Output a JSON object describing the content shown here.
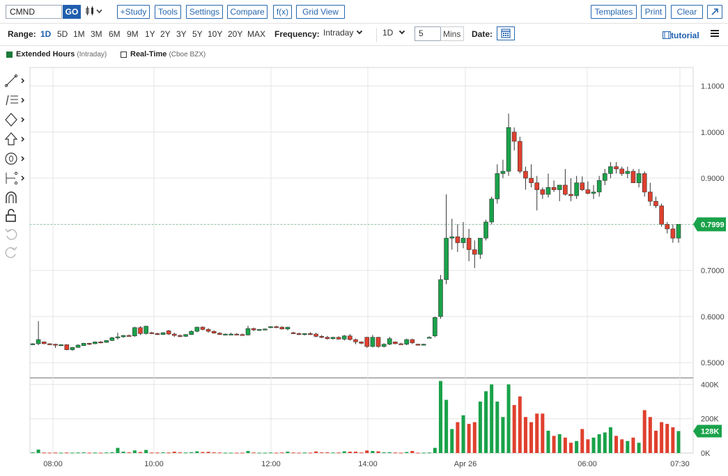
{
  "toolbar": {
    "symbol": "CMND",
    "go_label": "GO",
    "buttons": [
      {
        "name": "study-button",
        "label": "+Study"
      },
      {
        "name": "tools-button",
        "label": "Tools"
      },
      {
        "name": "settings-button",
        "label": "Settings"
      },
      {
        "name": "compare-button",
        "label": "Compare"
      },
      {
        "name": "fx-button",
        "label": "f(x)"
      },
      {
        "name": "grid-view-button",
        "label": "Grid View"
      }
    ],
    "right_buttons": [
      {
        "name": "templates-button",
        "label": "Templates"
      },
      {
        "name": "print-button",
        "label": "Print"
      },
      {
        "name": "clear-button",
        "label": "Clear"
      }
    ]
  },
  "controls": {
    "range_label": "Range:",
    "ranges": [
      "1D",
      "5D",
      "1M",
      "3M",
      "6M",
      "9M",
      "1Y",
      "2Y",
      "3Y",
      "5Y",
      "10Y",
      "20Y",
      "MAX"
    ],
    "active_range": "1D",
    "frequency_label": "Frequency:",
    "frequency_value": "Intraday",
    "interval_value": "1D",
    "minutes_value": "5",
    "minutes_label": "Mins",
    "date_label": "Date:",
    "tutorial_label": "tutorial"
  },
  "legend": {
    "extended_label": "Extended Hours",
    "extended_note": "(Intraday)",
    "realtime_label": "Real-Time",
    "realtime_note": "(Cboe BZX)"
  },
  "colors": {
    "up": "#1aa24a",
    "down": "#e0402e",
    "accent": "#1f5fae",
    "grid": "#e4e4e4"
  },
  "chart_data": {
    "type": "candlestick",
    "price_ticks": [
      "1.1000",
      "1.0000",
      "0.9000",
      "0.8000",
      "0.7000",
      "0.6000",
      "0.5000"
    ],
    "price_range": [
      0.47,
      1.14
    ],
    "volume_ticks": [
      "400K",
      "200K",
      "0K"
    ],
    "volume_range": [
      0,
      430
    ],
    "x_labels": [
      "08:00",
      "10:00",
      "12:00",
      "14:00",
      "Apr 26",
      "06:00",
      "07:30"
    ],
    "last_price": "0.7999",
    "last_volume": "128K",
    "candles": [
      [
        0.54,
        0.542,
        0.538,
        0.541,
        4
      ],
      [
        0.541,
        0.59,
        0.538,
        0.55,
        20
      ],
      [
        0.545,
        0.546,
        0.54,
        0.541,
        3
      ],
      [
        0.541,
        0.542,
        0.538,
        0.54,
        2
      ],
      [
        0.54,
        0.541,
        0.532,
        0.538,
        3
      ],
      [
        0.538,
        0.54,
        0.536,
        0.539,
        2
      ],
      [
        0.539,
        0.54,
        0.527,
        0.528,
        3
      ],
      [
        0.528,
        0.534,
        0.526,
        0.533,
        2
      ],
      [
        0.533,
        0.54,
        0.532,
        0.538,
        3
      ],
      [
        0.537,
        0.543,
        0.536,
        0.542,
        4
      ],
      [
        0.542,
        0.543,
        0.538,
        0.541,
        2
      ],
      [
        0.541,
        0.546,
        0.54,
        0.545,
        3
      ],
      [
        0.545,
        0.547,
        0.542,
        0.544,
        2
      ],
      [
        0.544,
        0.549,
        0.543,
        0.548,
        3
      ],
      [
        0.548,
        0.556,
        0.547,
        0.554,
        5
      ],
      [
        0.554,
        0.565,
        0.55,
        0.556,
        30
      ],
      [
        0.556,
        0.56,
        0.554,
        0.559,
        8
      ],
      [
        0.559,
        0.561,
        0.557,
        0.558,
        4
      ],
      [
        0.558,
        0.578,
        0.556,
        0.576,
        15
      ],
      [
        0.576,
        0.579,
        0.56,
        0.563,
        6
      ],
      [
        0.563,
        0.58,
        0.561,
        0.579,
        18
      ],
      [
        0.565,
        0.567,
        0.562,
        0.563,
        3
      ],
      [
        0.563,
        0.565,
        0.56,
        0.561,
        3
      ],
      [
        0.561,
        0.566,
        0.56,
        0.565,
        4
      ],
      [
        0.569,
        0.571,
        0.56,
        0.562,
        3
      ],
      [
        0.562,
        0.565,
        0.556,
        0.559,
        8
      ],
      [
        0.559,
        0.561,
        0.555,
        0.557,
        4
      ],
      [
        0.557,
        0.562,
        0.556,
        0.561,
        3
      ],
      [
        0.561,
        0.57,
        0.56,
        0.568,
        5
      ],
      [
        0.568,
        0.578,
        0.566,
        0.577,
        10
      ],
      [
        0.577,
        0.579,
        0.57,
        0.572,
        6
      ],
      [
        0.572,
        0.575,
        0.565,
        0.568,
        7
      ],
      [
        0.568,
        0.57,
        0.563,
        0.564,
        4
      ],
      [
        0.564,
        0.566,
        0.56,
        0.561,
        3
      ],
      [
        0.561,
        0.563,
        0.559,
        0.562,
        2
      ],
      [
        0.562,
        0.565,
        0.56,
        0.562,
        2
      ],
      [
        0.562,
        0.564,
        0.56,
        0.561,
        2
      ],
      [
        0.561,
        0.563,
        0.559,
        0.56,
        2
      ],
      [
        0.56,
        0.58,
        0.559,
        0.574,
        12
      ],
      [
        0.574,
        0.576,
        0.568,
        0.571,
        3
      ],
      [
        0.571,
        0.573,
        0.569,
        0.572,
        2
      ],
      [
        0.572,
        0.574,
        0.57,
        0.573,
        2
      ],
      [
        0.577,
        0.579,
        0.575,
        0.578,
        3
      ],
      [
        0.578,
        0.58,
        0.575,
        0.577,
        2
      ],
      [
        0.577,
        0.579,
        0.572,
        0.573,
        3
      ],
      [
        0.573,
        0.578,
        0.57,
        0.577,
        8
      ],
      [
        0.565,
        0.567,
        0.562,
        0.563,
        3
      ],
      [
        0.563,
        0.565,
        0.56,
        0.561,
        2
      ],
      [
        0.561,
        0.564,
        0.559,
        0.563,
        3
      ],
      [
        0.563,
        0.566,
        0.56,
        0.562,
        2
      ],
      [
        0.562,
        0.565,
        0.555,
        0.557,
        9
      ],
      [
        0.557,
        0.56,
        0.553,
        0.555,
        4
      ],
      [
        0.555,
        0.558,
        0.55,
        0.552,
        4
      ],
      [
        0.552,
        0.556,
        0.55,
        0.555,
        3
      ],
      [
        0.555,
        0.557,
        0.55,
        0.551,
        3
      ],
      [
        0.551,
        0.56,
        0.548,
        0.558,
        10
      ],
      [
        0.558,
        0.562,
        0.548,
        0.55,
        8
      ],
      [
        0.55,
        0.552,
        0.54,
        0.545,
        8
      ],
      [
        0.545,
        0.546,
        0.54,
        0.542,
        3
      ],
      [
        0.555,
        0.556,
        0.532,
        0.535,
        15
      ],
      [
        0.535,
        0.56,
        0.533,
        0.555,
        12
      ],
      [
        0.555,
        0.556,
        0.532,
        0.535,
        10
      ],
      [
        0.535,
        0.542,
        0.533,
        0.54,
        4
      ],
      [
        0.54,
        0.556,
        0.538,
        0.552,
        5
      ],
      [
        0.545,
        0.546,
        0.54,
        0.541,
        3
      ],
      [
        0.541,
        0.543,
        0.539,
        0.54,
        2
      ],
      [
        0.54,
        0.552,
        0.538,
        0.55,
        6
      ],
      [
        0.55,
        0.552,
        0.54,
        0.543,
        12
      ],
      [
        0.54,
        0.541,
        0.538,
        0.539,
        2
      ],
      [
        0.539,
        0.541,
        0.538,
        0.54,
        2
      ],
      [
        0.555,
        0.557,
        0.553,
        0.555,
        3
      ],
      [
        0.558,
        0.6,
        0.555,
        0.598,
        30
      ],
      [
        0.6,
        0.69,
        0.595,
        0.68,
        420
      ],
      [
        0.68,
        0.865,
        0.67,
        0.77,
        310
      ],
      [
        0.77,
        0.812,
        0.745,
        0.773,
        140
      ],
      [
        0.773,
        0.8,
        0.74,
        0.76,
        180
      ],
      [
        0.76,
        0.805,
        0.748,
        0.77,
        220
      ],
      [
        0.77,
        0.79,
        0.72,
        0.745,
        170
      ],
      [
        0.745,
        0.765,
        0.705,
        0.735,
        180
      ],
      [
        0.735,
        0.77,
        0.725,
        0.77,
        300
      ],
      [
        0.77,
        0.81,
        0.765,
        0.805,
        360
      ],
      [
        0.805,
        0.86,
        0.8,
        0.855,
        400
      ],
      [
        0.855,
        0.93,
        0.845,
        0.91,
        300
      ],
      [
        0.91,
        0.94,
        0.9,
        0.915,
        210
      ],
      [
        0.915,
        1.04,
        0.905,
        1.01,
        400
      ],
      [
        1.0,
        1.01,
        0.96,
        0.98,
        280
      ],
      [
        0.98,
        0.99,
        0.91,
        0.915,
        330
      ],
      [
        0.915,
        0.925,
        0.875,
        0.9,
        210
      ],
      [
        0.9,
        0.93,
        0.88,
        0.89,
        180
      ],
      [
        0.89,
        0.905,
        0.83,
        0.875,
        230
      ],
      [
        0.875,
        0.88,
        0.855,
        0.865,
        230
      ],
      [
        0.865,
        0.91,
        0.858,
        0.88,
        130
      ],
      [
        0.88,
        0.895,
        0.87,
        0.875,
        100
      ],
      [
        0.875,
        0.885,
        0.85,
        0.885,
        110
      ],
      [
        0.885,
        0.92,
        0.862,
        0.865,
        90
      ],
      [
        0.865,
        0.9,
        0.85,
        0.862,
        60
      ],
      [
        0.862,
        0.905,
        0.855,
        0.89,
        70
      ],
      [
        0.89,
        0.904,
        0.872,
        0.875,
        140
      ],
      [
        0.875,
        0.893,
        0.865,
        0.867,
        80
      ],
      [
        0.867,
        0.885,
        0.855,
        0.87,
        90
      ],
      [
        0.87,
        0.905,
        0.86,
        0.895,
        110
      ],
      [
        0.895,
        0.92,
        0.885,
        0.91,
        120
      ],
      [
        0.91,
        0.935,
        0.9,
        0.925,
        150
      ],
      [
        0.925,
        0.935,
        0.91,
        0.92,
        100
      ],
      [
        0.92,
        0.925,
        0.905,
        0.91,
        80
      ],
      [
        0.91,
        0.925,
        0.9,
        0.915,
        70
      ],
      [
        0.915,
        0.92,
        0.89,
        0.89,
        90
      ],
      [
        0.89,
        0.92,
        0.88,
        0.91,
        60
      ],
      [
        0.91,
        0.915,
        0.86,
        0.87,
        250
      ],
      [
        0.87,
        0.89,
        0.84,
        0.85,
        210
      ],
      [
        0.85,
        0.86,
        0.835,
        0.84,
        130
      ],
      [
        0.84,
        0.845,
        0.795,
        0.8,
        180
      ],
      [
        0.8,
        0.805,
        0.78,
        0.79,
        170
      ],
      [
        0.79,
        0.8,
        0.76,
        0.77,
        150
      ],
      [
        0.77,
        0.8,
        0.76,
        0.8,
        128
      ]
    ]
  }
}
